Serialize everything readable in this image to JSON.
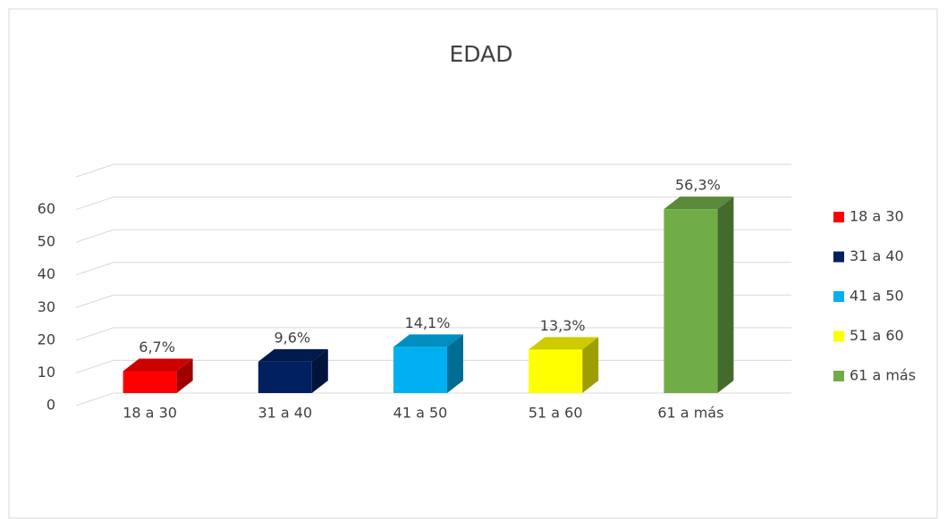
{
  "chart_data": {
    "type": "bar3d",
    "title": "EDAD",
    "categories": [
      "18 a 30",
      "31 a 40",
      "41 a 50",
      "51 a 60",
      "61 a más"
    ],
    "values": [
      6.7,
      9.6,
      14.1,
      13.3,
      56.3
    ],
    "value_labels": [
      "6,7%",
      "9,6%",
      "14,1%",
      "13,3%",
      "56,3%"
    ],
    "colors": [
      "#ff0000",
      "#002060",
      "#00b0f0",
      "#ffff00",
      "#70ad47"
    ],
    "ylim": [
      0,
      70
    ],
    "yticks": [
      0,
      10,
      20,
      30,
      40,
      50,
      60
    ],
    "grid": true,
    "legend": "right"
  }
}
